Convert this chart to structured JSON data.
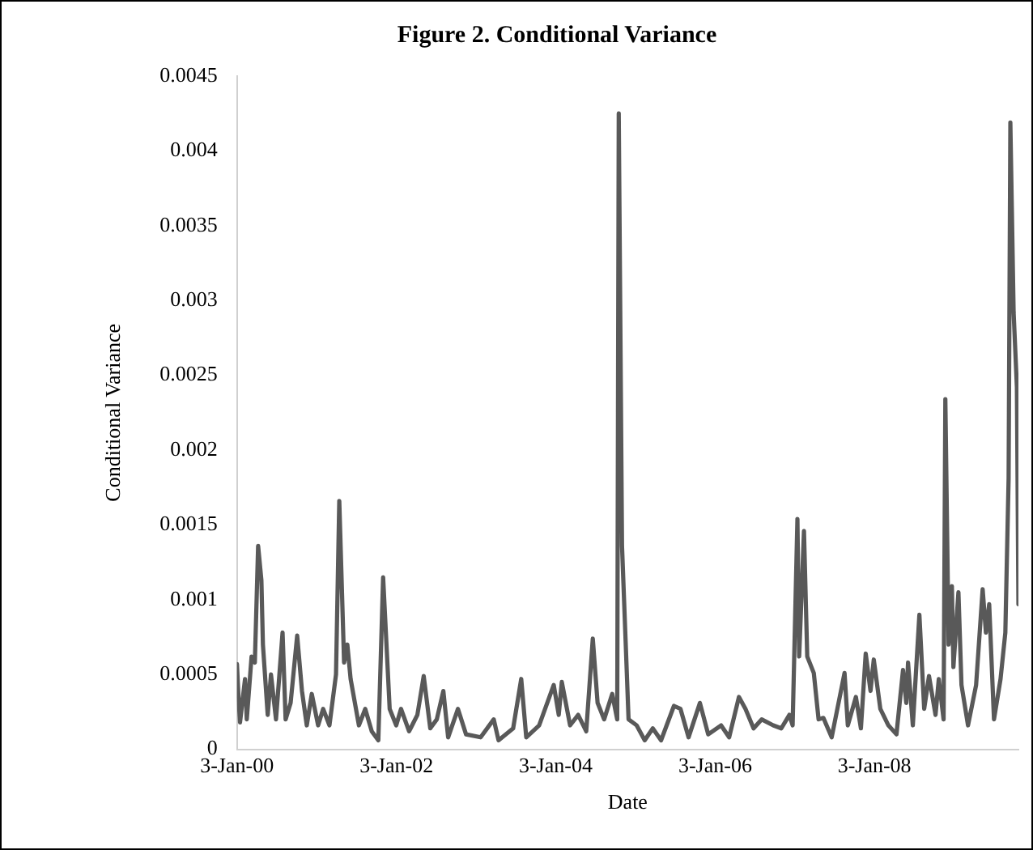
{
  "chart_data": {
    "type": "line",
    "title": "Figure 2. Conditional Variance",
    "xlabel": "Date",
    "ylabel": "Conditional Variance",
    "x": [
      "2000-01-03",
      "2000-01-10",
      "2000-01-17",
      "2000-02-09",
      "2000-02-17",
      "2000-03-10",
      "2000-03-25",
      "2000-04-09",
      "2000-04-24",
      "2000-05-01",
      "2000-05-23",
      "2000-06-07",
      "2000-06-30",
      "2000-07-30",
      "2000-08-13",
      "2000-09-05",
      "2000-10-05",
      "2000-10-27",
      "2000-11-18",
      "2000-12-11",
      "2001-01-09",
      "2001-02-01",
      "2001-03-02",
      "2001-04-01",
      "2001-04-16",
      "2001-05-08",
      "2001-05-23",
      "2001-06-07",
      "2001-07-15",
      "2001-08-13",
      "2001-09-12",
      "2001-10-12",
      "2001-11-03",
      "2001-12-03",
      "2002-01-02",
      "2002-01-24",
      "2002-03-02",
      "2002-04-09",
      "2002-05-08",
      "2002-06-07",
      "2002-07-07",
      "2002-08-06",
      "2002-08-28",
      "2002-10-12",
      "2002-11-18",
      "2003-01-24",
      "2003-03-25",
      "2003-04-16",
      "2003-06-22",
      "2003-07-29",
      "2003-08-21",
      "2003-10-19",
      "2003-12-25",
      "2004-01-17",
      "2004-01-31",
      "2004-03-09",
      "2004-04-15",
      "2004-05-22",
      "2004-06-21",
      "2004-07-13",
      "2004-08-12",
      "2004-09-18",
      "2004-10-11",
      "2004-10-18",
      "2004-11-02",
      "2004-11-17",
      "2004-12-02",
      "2005-01-08",
      "2005-02-14",
      "2005-03-23",
      "2005-04-30",
      "2005-06-28",
      "2005-07-28",
      "2005-09-03",
      "2005-10-25",
      "2005-12-02",
      "2006-01-30",
      "2006-03-08",
      "2006-04-22",
      "2006-05-22",
      "2006-06-28",
      "2006-08-04",
      "2006-09-26",
      "2006-11-02",
      "2006-12-09",
      "2006-12-24",
      "2007-01-15",
      "2007-01-23",
      "2007-02-14",
      "2007-03-01",
      "2007-03-31",
      "2007-04-22",
      "2007-05-14",
      "2007-06-21",
      "2007-08-19",
      "2007-09-03",
      "2007-10-10",
      "2007-11-02",
      "2007-11-24",
      "2007-12-16",
      "2007-12-31",
      "2008-01-30",
      "2008-03-07",
      "2008-04-13",
      "2008-05-13",
      "2008-05-28",
      "2008-06-05",
      "2008-06-27",
      "2008-07-27",
      "2008-08-18",
      "2008-09-09",
      "2008-10-09",
      "2008-10-24",
      "2008-11-15",
      "2008-11-23",
      "2008-12-08",
      "2008-12-23",
      "2008-12-30",
      "2009-01-22",
      "2009-02-05",
      "2009-03-07",
      "2009-04-13",
      "2009-05-13",
      "2009-05-28",
      "2009-06-12",
      "2009-07-04",
      "2009-08-03",
      "2009-08-25",
      "2009-09-09",
      "2009-09-17",
      "2009-10-02",
      "2009-10-17",
      "2009-10-24"
    ],
    "series": [
      {
        "color": "#595959",
        "values": [
          0.00057,
          0.00035,
          0.00018,
          0.00047,
          0.0002,
          0.00062,
          0.00058,
          0.00136,
          0.00113,
          0.0007,
          0.00023,
          0.0005,
          0.0002,
          0.00078,
          0.0002,
          0.00031,
          0.00076,
          0.00039,
          0.00016,
          0.00037,
          0.00016,
          0.00027,
          0.00016,
          0.0005,
          0.00166,
          0.00058,
          0.0007,
          0.00047,
          0.00016,
          0.00027,
          0.00012,
          6e-05,
          0.00115,
          0.00027,
          0.00016,
          0.00027,
          0.00012,
          0.00023,
          0.00049,
          0.00014,
          0.0002,
          0.00039,
          8e-05,
          0.00027,
          0.0001,
          8e-05,
          0.0002,
          6e-05,
          0.00014,
          0.00047,
          8e-05,
          0.00016,
          0.00043,
          0.00023,
          0.00045,
          0.00016,
          0.00023,
          0.00012,
          0.00074,
          0.00031,
          0.0002,
          0.00037,
          0.0002,
          0.00425,
          0.00136,
          0.00078,
          0.0002,
          0.00016,
          6e-05,
          0.00014,
          6e-05,
          0.00029,
          0.00027,
          8e-05,
          0.00031,
          0.0001,
          0.00016,
          8e-05,
          0.00035,
          0.00027,
          0.00014,
          0.0002,
          0.00016,
          0.00014,
          0.00023,
          0.00016,
          0.00154,
          0.00062,
          0.00146,
          0.00062,
          0.00051,
          0.0002,
          0.00021,
          8e-05,
          0.00051,
          0.00016,
          0.00035,
          0.00014,
          0.00064,
          0.00039,
          0.0006,
          0.00027,
          0.00016,
          0.0001,
          0.00053,
          0.00031,
          0.00058,
          0.00016,
          0.0009,
          0.00027,
          0.00049,
          0.00023,
          0.00047,
          0.0002,
          0.00234,
          0.0007,
          0.00109,
          0.00055,
          0.00105,
          0.00043,
          0.00016,
          0.00043,
          0.00107,
          0.00078,
          0.00097,
          0.0002,
          0.00047,
          0.00078,
          0.00181,
          0.00419,
          0.00292,
          0.00242,
          0.00097
        ]
      }
    ],
    "xlim": [
      "2000-01-03",
      "2009-10-24"
    ],
    "xticks": [
      {
        "value": "2000-01-03",
        "label": "3-Jan-00"
      },
      {
        "value": "2002-01-03",
        "label": "3-Jan-02"
      },
      {
        "value": "2004-01-03",
        "label": "3-Jan-04"
      },
      {
        "value": "2006-01-03",
        "label": "3-Jan-06"
      },
      {
        "value": "2008-01-03",
        "label": "3-Jan-08"
      }
    ],
    "ylim": [
      0,
      0.0045
    ],
    "yticks": [
      0,
      0.0005,
      0.001,
      0.0015,
      0.002,
      0.0025,
      0.003,
      0.0035,
      0.004,
      0.0045
    ],
    "grid": false,
    "legend": false,
    "marker": "none",
    "line_style": "solid"
  }
}
